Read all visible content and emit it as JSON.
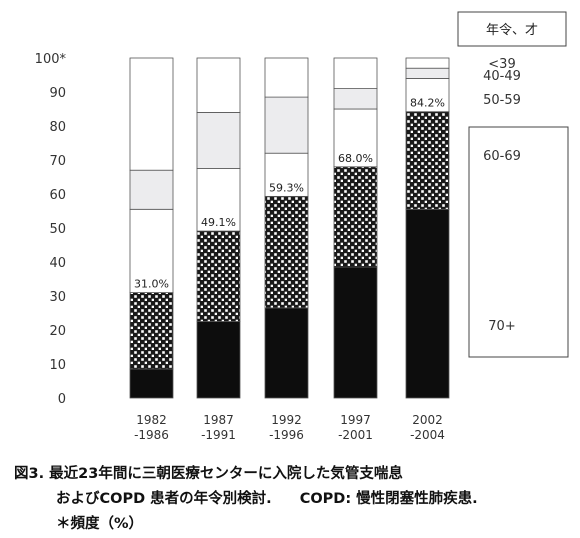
{
  "chart_data": {
    "type": "bar",
    "subtype": "stacked-100",
    "categories": [
      "1982\n-1986",
      "1987\n-1991",
      "1992\n-1996",
      "1997\n-2001",
      "2002\n-2004"
    ],
    "y_ticks": [
      "0",
      "10",
      "20",
      "30",
      "40",
      "50",
      "60",
      "70",
      "80",
      "90",
      "100*"
    ],
    "ylim": [
      0,
      100
    ],
    "series": [
      {
        "name": "70+",
        "pattern": "solid-black",
        "values": [
          8.5,
          22.5,
          26.5,
          38.5,
          55.5
        ]
      },
      {
        "name": "60-69",
        "pattern": "lattice",
        "values": [
          22.5,
          26.6,
          32.8,
          29.5,
          28.7
        ]
      },
      {
        "name": "50-59",
        "pattern": "white",
        "values": [
          24.5,
          18.4,
          12.7,
          17.0,
          9.8
        ]
      },
      {
        "name": "40-49",
        "pattern": "light-gray",
        "values": [
          11.5,
          16.5,
          16.5,
          6.0,
          3.0
        ]
      },
      {
        "name": "<39",
        "pattern": "white",
        "values": [
          33.0,
          16.0,
          11.5,
          9.0,
          3.0
        ]
      }
    ],
    "bar_labels": [
      "31.0%",
      "49.1%",
      "59.3%",
      "68.0%",
      "84.2%"
    ],
    "legend_title": "年令、才",
    "legend_labels": [
      "<39",
      "40-49",
      "50-59",
      "60-69",
      "70+"
    ]
  },
  "caption": {
    "line1": "図3. 最近23年間に三朝医療センターに入院した気管支喘息",
    "line2a": "およびCOPD 患者の年令別検討.",
    "line2b": "COPD: 慢性閉塞性肺疾患.",
    "line3": "＊頻度（%）"
  }
}
